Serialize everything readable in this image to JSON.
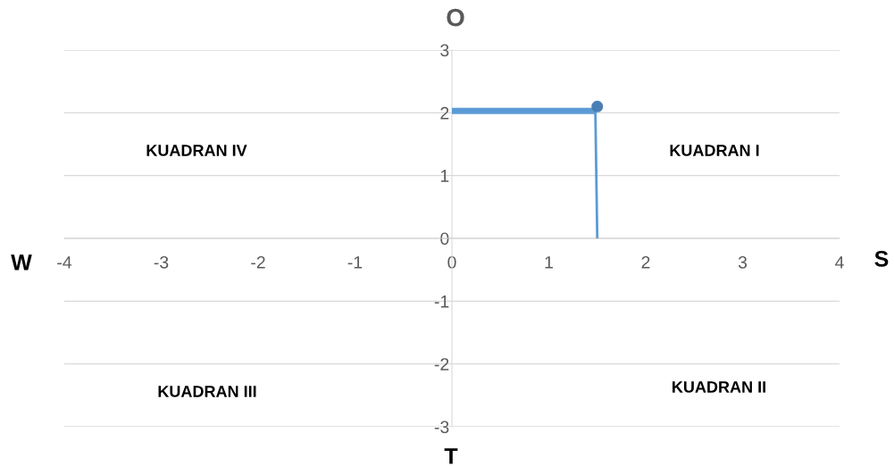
{
  "chart_data": {
    "type": "line",
    "series": [
      {
        "color": "#5b9bd5",
        "x": [
          0,
          1.48
        ],
        "values": [
          2.03,
          2.03
        ]
      },
      {
        "color": "#5b9bd5",
        "x": [
          1.48,
          1.5
        ],
        "values": [
          2.05,
          0
        ]
      },
      {
        "type": "scatter",
        "color": "#4a7fb5",
        "x": [
          1.5
        ],
        "values": [
          2.1
        ]
      }
    ],
    "xlim": [
      -4,
      4
    ],
    "xticks": [
      -4,
      -3,
      -2,
      -1,
      0,
      1,
      2,
      3,
      4
    ],
    "ylim": [
      -3,
      3
    ],
    "yticks": [
      -3,
      -2,
      -1,
      0,
      1,
      2,
      3
    ],
    "grid": "y",
    "annotations": [
      "O",
      "T",
      "W",
      "S",
      "KUADRAN I",
      "KUADRAN II",
      "KUADRAN III",
      "KUADRAN IV"
    ]
  }
}
